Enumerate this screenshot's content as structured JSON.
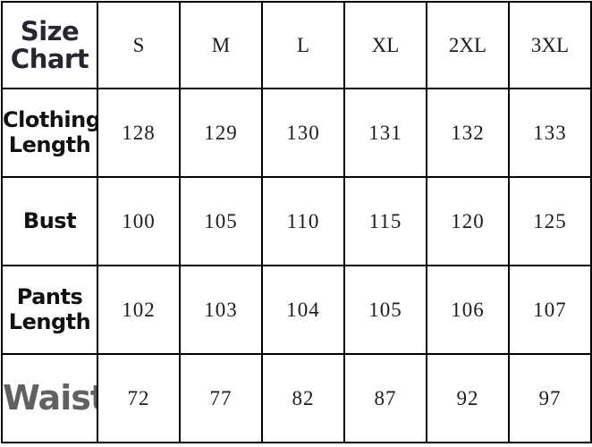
{
  "chart_data": {
    "type": "table",
    "title": "Size Chart",
    "columns": [
      "S",
      "M",
      "L",
      "XL",
      "2XL",
      "3XL"
    ],
    "rows": [
      {
        "label": "Clothing Length",
        "values": [
          "128",
          "129",
          "130",
          "131",
          "132",
          "133"
        ]
      },
      {
        "label": "Bust",
        "values": [
          "100",
          "105",
          "110",
          "115",
          "120",
          "125"
        ]
      },
      {
        "label": "Pants Length",
        "values": [
          "102",
          "103",
          "104",
          "105",
          "106",
          "107"
        ]
      },
      {
        "label": "Waist",
        "values": [
          "72",
          "77",
          "82",
          "87",
          "92",
          "97"
        ]
      }
    ]
  },
  "colors": {
    "title_text": "#26262e",
    "row_label_text": "#111111",
    "waist_label_text": "#616161",
    "value_text": "#1c1c1c",
    "grid_line": "#000000",
    "background": "#ffffff"
  }
}
